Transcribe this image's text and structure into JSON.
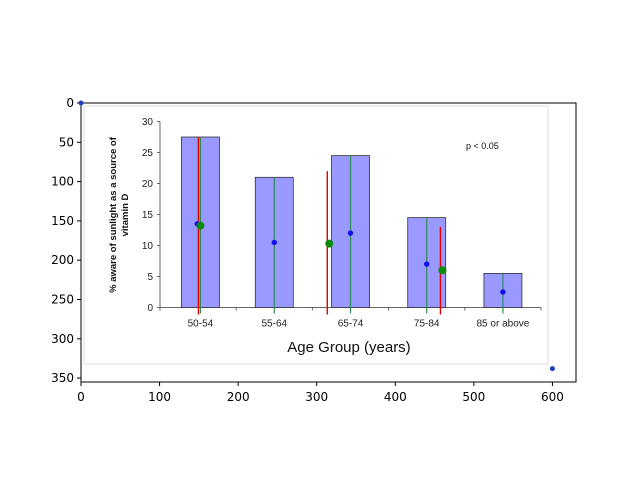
{
  "chart_data": {
    "type": "image",
    "outer_axes": {
      "xlim": [
        0,
        630
      ],
      "ylim": [
        355,
        0
      ],
      "xticks": [
        0,
        100,
        200,
        300,
        400,
        500,
        600
      ],
      "yticks": [
        0,
        50,
        100,
        150,
        200,
        250,
        300,
        350
      ],
      "scatter_points": [
        {
          "x": 0,
          "y": 0,
          "color": "#1f3fbf"
        },
        {
          "x": 600,
          "y": 338,
          "color": "#1f3fbf"
        }
      ]
    },
    "embedded_chart": {
      "type": "bar",
      "categories": [
        "50-54",
        "55-64",
        "65-74",
        "75-84",
        "85 or above"
      ],
      "values": [
        27.5,
        21,
        24.5,
        14.5,
        5.5
      ],
      "ylim": [
        0,
        30
      ],
      "yticks": [
        0,
        5,
        10,
        15,
        20,
        25,
        30
      ],
      "xlabel": "Age Group (years)",
      "ylabel_lines": [
        "% aware of sunlight as a source of",
        "vitamin D"
      ],
      "annotation": "p < 0.05",
      "bar_color": "#9999ff",
      "blue_points": [
        {
          "x": 148,
          "y": 13.5
        },
        {
          "x": 246,
          "y": 10.5
        },
        {
          "x": 343,
          "y": 12
        },
        {
          "x": 440,
          "y": 7
        },
        {
          "x": 537,
          "y": 2.5
        }
      ],
      "green_points": [
        {
          "x": 152,
          "y": 13.2
        },
        {
          "x": 316,
          "y": 10.3
        },
        {
          "x": 460,
          "y": 6
        }
      ],
      "green_lines_x": [
        152,
        246,
        343,
        440,
        537
      ],
      "red_lines": [
        {
          "x": 152,
          "top": 27.5
        },
        {
          "x": 316,
          "top": 22
        },
        {
          "x": 460,
          "top": 13
        }
      ]
    }
  }
}
